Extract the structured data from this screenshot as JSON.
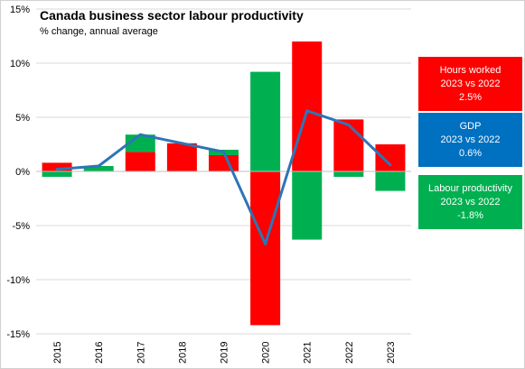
{
  "chart_data": {
    "type": "bar",
    "title": "Canada business sector labour productivity",
    "subtitle": "% change, annual average",
    "categories": [
      "2015",
      "2016",
      "2017",
      "2018",
      "2019",
      "2020",
      "2021",
      "2022",
      "2023"
    ],
    "ylim": [
      -15,
      15
    ],
    "yticks": [
      15,
      10,
      5,
      0,
      -5,
      -10,
      -15
    ],
    "ytick_labels": [
      "15%",
      "10%",
      "5%",
      "0%",
      "-5%",
      "-10%",
      "-15%"
    ],
    "grid": true,
    "series": [
      {
        "name": "Hours worked",
        "kind": "bar",
        "color": "#ff0000",
        "values": [
          0.8,
          0.0,
          1.8,
          2.6,
          1.5,
          -14.2,
          12.0,
          4.8,
          2.5
        ]
      },
      {
        "name": "Labour productivity",
        "kind": "bar",
        "color": "#00b050",
        "values": [
          -0.5,
          0.5,
          1.6,
          0.0,
          0.5,
          9.2,
          -6.3,
          -0.5,
          -1.8
        ]
      },
      {
        "name": "GDP",
        "kind": "line",
        "color": "#2e75b6",
        "values": [
          0.2,
          0.5,
          3.4,
          2.6,
          1.8,
          -6.7,
          5.6,
          4.3,
          0.6
        ]
      }
    ],
    "legend_placement": "right"
  },
  "legend_boxes": {
    "hours": {
      "line1": "Hours worked",
      "line2": "2023 vs 2022",
      "line3": "2.5%",
      "color": "#ff0000"
    },
    "gdp": {
      "line1": "GDP",
      "line2": "2023 vs 2022",
      "line3": "0.6%",
      "color": "#0070c0"
    },
    "lp": {
      "line1": "Labour productivity",
      "line2": "2023 vs 2022",
      "line3": "-1.8%",
      "color": "#00b050"
    }
  }
}
